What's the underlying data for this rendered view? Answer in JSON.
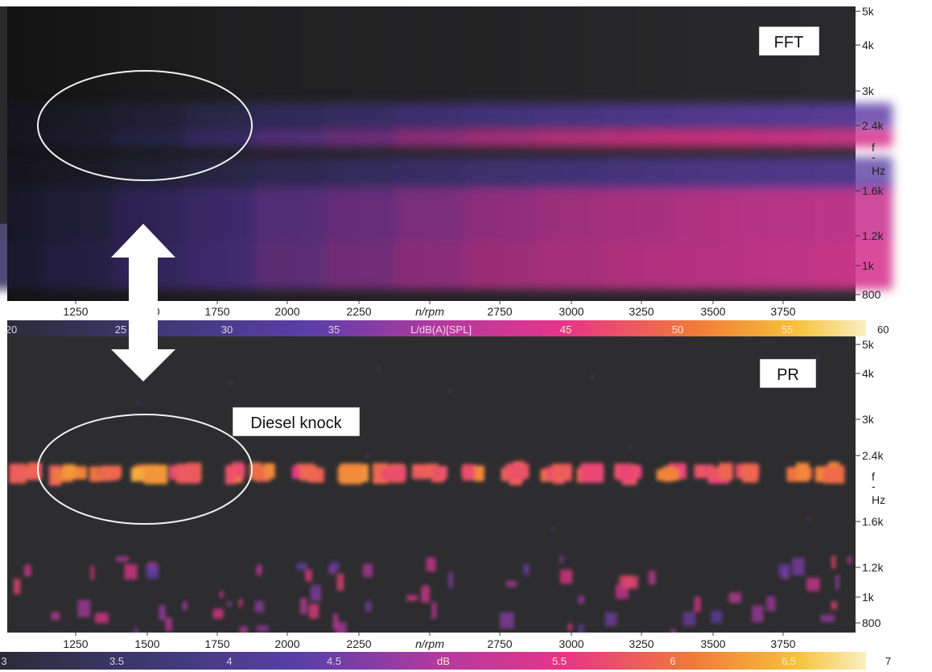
{
  "chart_data": [
    {
      "type": "heatmap",
      "title": "FFT",
      "xlabel": "n/rpm",
      "ylabel": "f\n-\nHz",
      "xlim": [
        1000,
        4000
      ],
      "x_ticks": [
        "1250",
        "1500",
        "1750",
        "2000",
        "2250",
        "n/rpm",
        "2750",
        "3000",
        "3250",
        "3500",
        "3750"
      ],
      "y_ticks": [
        "5k",
        "4k",
        "3k",
        "2.4k",
        "1.6k",
        "1.2k",
        "1k",
        "800"
      ],
      "y_unit_label": [
        "f",
        "-",
        "Hz"
      ],
      "colorbar": {
        "label": "L/dB(A)[SPL]",
        "ticks": [
          "20",
          "25",
          "30",
          "35",
          "45",
          "50",
          "55",
          "60"
        ],
        "min": 20,
        "max": 60
      },
      "bands": [
        {
          "f_hz": 2200,
          "start_rpm": 1000,
          "intensity": [
            0.1,
            0.12,
            0.25,
            0.4,
            0.55,
            0.62,
            0.72,
            0.8,
            0.85,
            0.88,
            0.88,
            0.86,
            0.85
          ]
        },
        {
          "f_hz": 1300,
          "start_rpm": 1000,
          "intensity": [
            0.15,
            0.22,
            0.38,
            0.45,
            0.55,
            0.6,
            0.66,
            0.72,
            0.76,
            0.78,
            0.8,
            0.8,
            0.8
          ]
        },
        {
          "f_hz": 900,
          "start_rpm": 1000,
          "intensity": [
            0.2,
            0.3,
            0.42,
            0.5,
            0.58,
            0.64,
            0.72,
            0.78,
            0.8,
            0.82,
            0.82,
            0.83,
            0.84
          ]
        }
      ],
      "annotation": "FFT"
    },
    {
      "type": "heatmap",
      "title": "PR",
      "xlabel": "n/rpm",
      "ylabel": "f\n-\nHz",
      "xlim": [
        1000,
        4000
      ],
      "x_ticks": [
        "1250",
        "1500",
        "1750",
        "2000",
        "2250",
        "n/rpm",
        "2750",
        "3000",
        "3250",
        "3500",
        "3750"
      ],
      "y_ticks": [
        "5k",
        "4k",
        "3k",
        "2.4k",
        "1.6k",
        "1.2k",
        "1k",
        "800"
      ],
      "y_unit_label": [
        "f",
        "-",
        "Hz"
      ],
      "colorbar": {
        "label": "dB",
        "ticks": [
          "3",
          "3.5",
          "4",
          "4.5",
          "dB",
          "5.5",
          "6",
          "6.5",
          "7"
        ],
        "min": 3,
        "max": 7
      },
      "knock_band_hz": 2200,
      "knock_intensity": [
        0.7,
        0.85,
        0.75,
        0.9,
        0.65,
        0.72,
        0.8,
        0.6,
        0.78,
        0.68,
        0.62,
        0.75,
        0.7,
        0.72,
        0.66,
        0.6,
        0.7,
        0.65,
        0.72,
        0.8,
        0.95
      ],
      "annotation": "Diesel knock"
    }
  ],
  "labels": {
    "fft_box": "FFT",
    "pr_box": "PR",
    "knock_label": "Diesel knock"
  },
  "colors": {
    "background": "#2b2b2d",
    "low": "#2c2c34",
    "mid": "#4e3a8e",
    "high": "#e8318a",
    "peak": "#ffd94a",
    "ellipse": "#f2f2f2",
    "arrow": "#ffffff"
  }
}
